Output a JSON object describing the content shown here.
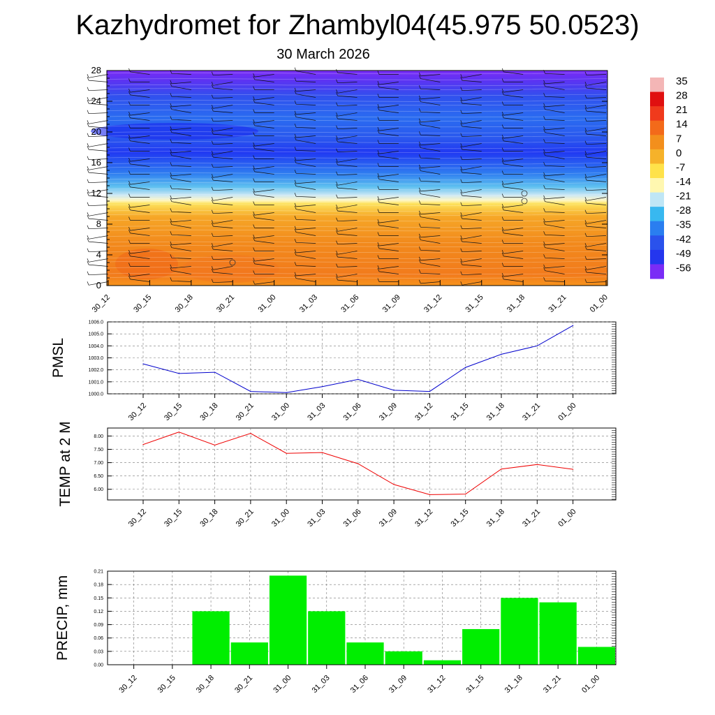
{
  "title": "Kazhydromet for Zhambyl04(45.975 50.0523)",
  "subtitle": "30 March 2026",
  "chart_data": [
    {
      "type": "heatmap",
      "description_panel": "cross-section",
      "x": [
        "30_12",
        "30_15",
        "30_18",
        "30_21",
        "31_00",
        "31_03",
        "31_06",
        "31_09",
        "31_12",
        "31_15",
        "31_18",
        "31_21",
        "01_00"
      ],
      "y_ticks": [
        "0",
        "4",
        "8",
        "12",
        "16",
        "20",
        "24",
        "28"
      ],
      "ylim": [
        0,
        28
      ],
      "colorbar": {
        "labels": [
          "35",
          "28",
          "21",
          "14",
          "7",
          "0",
          "-7",
          "-14",
          "-21",
          "-28",
          "-35",
          "-42",
          "-49",
          "-56"
        ],
        "colors": [
          "#f4b6b6",
          "#e01010",
          "#f03a1c",
          "#f36a1a",
          "#f38f1c",
          "#f6b22a",
          "#ffe24a",
          "#fff7b0",
          "#bfe6f6",
          "#38b8f0",
          "#2a7ef0",
          "#2a52ec",
          "#2436ee",
          "#7a2cf6"
        ]
      }
    },
    {
      "type": "line",
      "ylabel": "PMSL",
      "categories": [
        "30_12",
        "30_15",
        "30_18",
        "30_21",
        "31_00",
        "31_03",
        "31_06",
        "31_09",
        "31_12",
        "31_15",
        "31_18",
        "31_21",
        "01_00"
      ],
      "values": [
        1002.5,
        1001.7,
        1001.8,
        1000.2,
        1000.1,
        1000.6,
        1001.2,
        1000.3,
        1000.2,
        1002.2,
        1003.3,
        1004.0,
        1005.7
      ],
      "ylim": [
        1000.0,
        1006.0
      ],
      "y_ticks": [
        "1000.0",
        "1001.0",
        "1002.0",
        "1003.0",
        "1004.0",
        "1005.0",
        "1006.0"
      ],
      "color": "#0000cc"
    },
    {
      "type": "line",
      "ylabel": "TEMP at 2 M",
      "categories": [
        "30_12",
        "30_15",
        "30_18",
        "30_21",
        "31_00",
        "31_03",
        "31_06",
        "31_09",
        "31_12",
        "31_15",
        "31_18",
        "31_21",
        "01_00"
      ],
      "values": [
        7.68,
        8.15,
        7.66,
        8.1,
        7.35,
        7.38,
        6.96,
        6.18,
        5.8,
        5.82,
        6.76,
        6.93,
        6.75
      ],
      "ylim": [
        5.6,
        8.3
      ],
      "y_ticks": [
        "6.00",
        "6.50",
        "7.00",
        "7.50",
        "8.00"
      ],
      "color": "#ee0000"
    },
    {
      "type": "bar",
      "ylabel": "PRECIP, mm",
      "categories": [
        "30_12",
        "30_15",
        "30_18",
        "30_21",
        "31_00",
        "31_03",
        "31_06",
        "31_09",
        "31_12",
        "31_15",
        "31_18",
        "31_21",
        "01_00"
      ],
      "values": [
        0.0,
        0.0,
        0.12,
        0.05,
        0.2,
        0.12,
        0.05,
        0.03,
        0.01,
        0.08,
        0.15,
        0.14,
        0.04
      ],
      "ylim": [
        0,
        0.21
      ],
      "y_ticks": [
        "0.00",
        "0.03",
        "0.06",
        "0.09",
        "0.12",
        "0.15",
        "0.18",
        "0.21"
      ],
      "color": "#00ee00"
    }
  ]
}
